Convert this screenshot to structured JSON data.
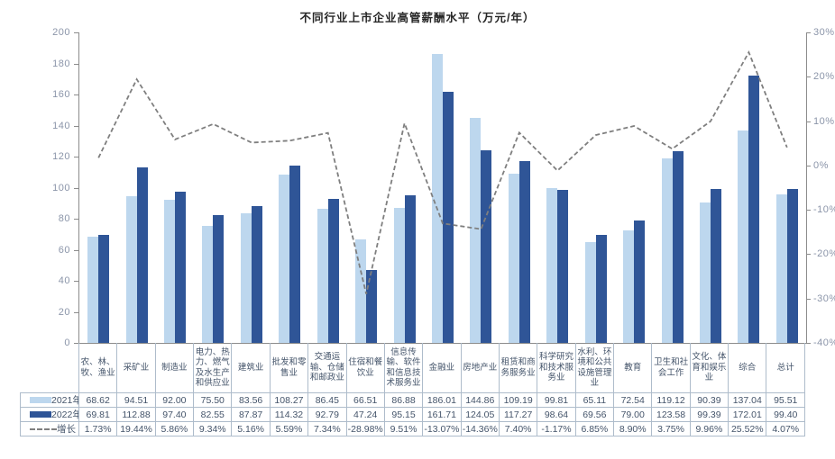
{
  "chart_data": {
    "type": "bar",
    "title": "不同行业上市企业高管薪酬水平（万元/年）",
    "categories": [
      "农、林、牧、渔业",
      "采矿业",
      "制造业",
      "电力、热力、燃气及水生产和供应业",
      "建筑业",
      "批发和零售业",
      "交通运输、仓储和邮政业",
      "住宿和餐饮业",
      "信息传输、软件和信息技术服务业",
      "金融业",
      "房地产业",
      "租赁和商务服务业",
      "科学研究和技术服务业",
      "水利、环境和公共设施管理业",
      "教育",
      "卫生和社会工作",
      "文化、体育和娱乐业",
      "综合",
      "总计"
    ],
    "series": [
      {
        "name": "2021年",
        "type": "bar",
        "color": "#BDD7EE",
        "axis": "left",
        "values": [
          68.62,
          94.51,
          92.0,
          75.5,
          83.56,
          108.27,
          86.45,
          66.51,
          86.88,
          186.01,
          144.86,
          109.19,
          99.81,
          65.11,
          72.54,
          119.12,
          90.39,
          137.04,
          95.51
        ]
      },
      {
        "name": "2022年",
        "type": "bar",
        "color": "#2F5597",
        "axis": "left",
        "values": [
          69.81,
          112.88,
          97.4,
          82.55,
          87.87,
          114.32,
          92.79,
          47.24,
          95.15,
          161.71,
          124.05,
          117.27,
          98.64,
          69.56,
          79.0,
          123.58,
          99.39,
          172.01,
          99.4
        ]
      },
      {
        "name": "增长",
        "type": "line",
        "line_style": "dashed",
        "color": "#7F7F7F",
        "axis": "right",
        "unit": "%",
        "values": [
          1.73,
          19.44,
          5.86,
          9.34,
          5.16,
          5.59,
          7.34,
          -28.98,
          9.51,
          -13.07,
          -14.36,
          7.4,
          -1.17,
          6.85,
          8.9,
          3.75,
          9.96,
          25.52,
          4.07
        ]
      }
    ],
    "left_axis": {
      "min": 0,
      "max": 200,
      "step": 20
    },
    "right_axis": {
      "min": -40,
      "max": 30,
      "step": 10,
      "suffix": "%"
    },
    "grid": false,
    "legend_position": "data-table-left-column",
    "data_table_shown": true
  }
}
